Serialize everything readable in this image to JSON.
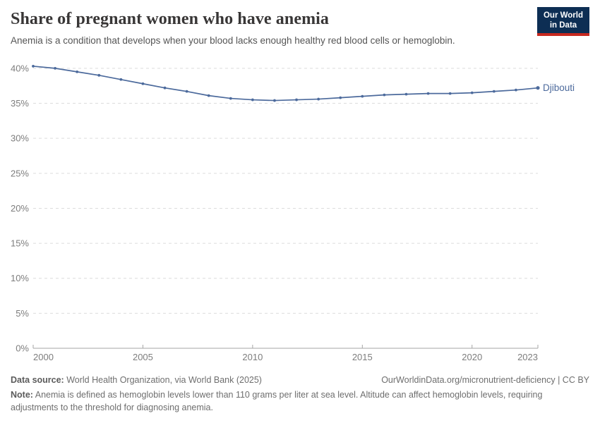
{
  "header": {
    "title": "Share of pregnant women who have anemia",
    "subtitle": "Anemia is a condition that develops when your blood lacks enough healthy red blood cells or hemoglobin.",
    "logo": {
      "line1": "Our World",
      "line2": "in Data",
      "bg_color": "#0d2e54",
      "accent_color": "#c7281f"
    }
  },
  "chart_data": {
    "type": "line",
    "title": "Share of pregnant women who have anemia",
    "x": [
      2000,
      2001,
      2002,
      2003,
      2004,
      2005,
      2006,
      2007,
      2008,
      2009,
      2010,
      2011,
      2012,
      2013,
      2014,
      2015,
      2016,
      2017,
      2018,
      2019,
      2020,
      2021,
      2022,
      2023
    ],
    "series": [
      {
        "name": "Djibouti",
        "color": "#4c6a9c",
        "values": [
          40.3,
          40.0,
          39.5,
          39.0,
          38.4,
          37.8,
          37.2,
          36.7,
          36.1,
          35.7,
          35.5,
          35.4,
          35.5,
          35.6,
          35.8,
          36.0,
          36.2,
          36.3,
          36.4,
          36.4,
          36.5,
          36.7,
          36.9,
          37.2
        ]
      }
    ],
    "x_ticks": [
      2000,
      2005,
      2010,
      2015,
      2020,
      2023
    ],
    "y_ticks": [
      0,
      5,
      10,
      15,
      20,
      25,
      30,
      35,
      40
    ],
    "y_tick_labels": [
      "0%",
      "5%",
      "10%",
      "15%",
      "20%",
      "25%",
      "30%",
      "35%",
      "40%"
    ],
    "xlim": [
      2000,
      2023
    ],
    "ylim": [
      0,
      40
    ],
    "xlabel": "",
    "ylabel": "",
    "grid": "horizontal-dashed",
    "legend_position": "end-of-line",
    "grid_color": "#dcdcdc",
    "axis_color": "#a5a5a5",
    "tick_label_color": "#7d7d7d"
  },
  "footer": {
    "source_label": "Data source:",
    "source_text": "World Health Organization, via World Bank (2025)",
    "citation": "OurWorldinData.org/micronutrient-deficiency | CC BY",
    "note_label": "Note:",
    "note_text": "Anemia is defined as hemoglobin levels lower than 110 grams per liter at sea level. Altitude can affect hemoglobin levels, requiring adjustments to the threshold for diagnosing anemia."
  }
}
